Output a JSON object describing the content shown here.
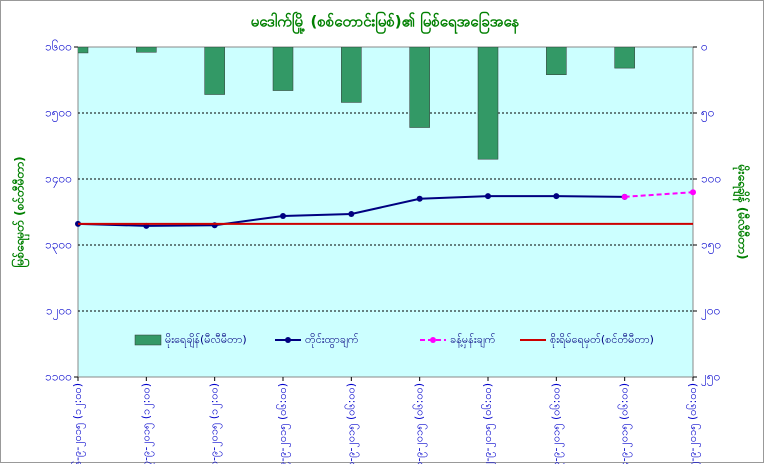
{
  "chart_data": {
    "type": "line",
    "title": "မဒေါက်မြို့ (စစ်တောင်းမြစ်)၏ မြစ်ရေအခြေအနေ",
    "ylabel": "မြစ်ရေမှတ် (စင်တီမီတာ)",
    "y2label": "မိုးရေချိန် (မီလီမီတာ)",
    "categories": [
      "၆-၉-၂၀၁၅ (၁၂:၀၀)",
      "၇-၉-၂၀၁၅ (၁၂:၀၀)",
      "၈-၉-၂၀၁၅ (၁၂:၀၀)",
      "၉-၉-၂၀၁၅ (၀၆:၀၀)",
      "၁၀-၉-၂၀၁၅ (၀၆:၀၀)",
      "၁၁-၉-၂၀၁၅ (၀၆:၀၀)",
      "၁၂-၉-၂၀၁၅ (၀၆:၀၀)",
      "၁၃-၉-၂၀၁၅ (၀၆:၀၀)",
      "၁၄-၉-၂၀၁၅ (၀၆:၀၀)",
      "၁၅-၉-၂၀၁၅ (၀၆:၀၀)"
    ],
    "series": [
      {
        "name": "မိုးရေချိန်(မီလီမီတာ)",
        "type": "bar",
        "axis": "y2",
        "color": "#339966",
        "values": [
          4.5,
          4,
          36,
          33,
          42,
          61,
          85,
          21,
          16,
          null
        ]
      },
      {
        "name": "တိုင်းထွာချက်",
        "type": "line",
        "color": "#000080",
        "values": [
          1332,
          1329,
          1330,
          1344,
          1347,
          1370,
          1374,
          1374,
          1373,
          null
        ]
      },
      {
        "name": "ခန့်မှန်းချက်",
        "type": "line",
        "dashed": true,
        "color": "#ff00ff",
        "values": [
          null,
          null,
          null,
          null,
          null,
          null,
          null,
          null,
          1373,
          1380
        ]
      },
      {
        "name": "စိုးရိမ်ရေမှတ်(စင်တီမီတာ)",
        "type": "line",
        "color": "#cc0000",
        "values": [
          1332,
          1332,
          1332,
          1332,
          1332,
          1332,
          1332,
          1332,
          1332,
          1332
        ]
      }
    ],
    "ylim": [
      1100,
      1600
    ],
    "yticks": [
      {
        "value": 1100,
        "label": "၁၁၀၀"
      },
      {
        "value": 1200,
        "label": "၁၂၀၀"
      },
      {
        "value": 1300,
        "label": "၁၃၀၀"
      },
      {
        "value": 1400,
        "label": "၁၄၀၀"
      },
      {
        "value": 1500,
        "label": "၁၅၀၀"
      },
      {
        "value": 1600,
        "label": "၁၆၀၀"
      }
    ],
    "y2lim": [
      250,
      0
    ],
    "y2ticks": [
      {
        "value": 0,
        "label": "၀"
      },
      {
        "value": 50,
        "label": "၅၀"
      },
      {
        "value": 100,
        "label": "၁၀၀"
      },
      {
        "value": 150,
        "label": "၁၅၀"
      },
      {
        "value": 200,
        "label": "၂၀၀"
      },
      {
        "value": 250,
        "label": "၂၅၀"
      }
    ],
    "grid": true,
    "legend": "bottom"
  }
}
